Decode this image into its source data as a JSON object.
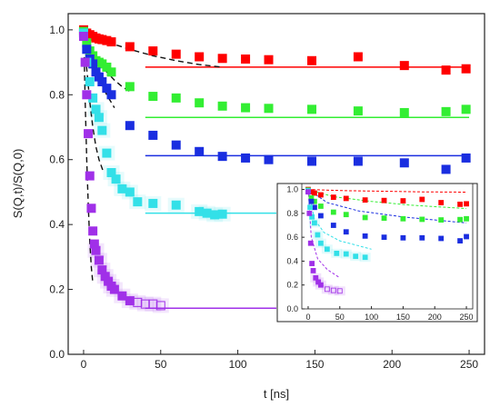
{
  "chart_data": [
    {
      "type": "scatter",
      "title": "",
      "xlabel": "t [ns]",
      "ylabel": "S(Q,t)/S(Q,0)",
      "xlim": [
        -10,
        260
      ],
      "ylim": [
        0,
        1.05
      ],
      "xticks": [
        0,
        50,
        100,
        150,
        200,
        250
      ],
      "yticks": [
        0.0,
        0.2,
        0.4,
        0.6,
        0.8,
        1.0
      ],
      "xtick_labels": [
        "0",
        "50",
        "100",
        "150",
        "200",
        "250"
      ],
      "ytick_labels": [
        "0.0",
        "0.2",
        "0.4",
        "0.6",
        "0.8",
        "1.0"
      ],
      "grid": false,
      "series": [
        {
          "color": "#ff0000",
          "marker": "square-filled",
          "x": [
            0,
            2,
            4,
            6,
            8,
            10,
            12,
            15,
            18,
            30,
            45,
            60,
            75,
            90,
            105,
            120,
            148,
            178,
            208,
            235,
            248
          ],
          "y": [
            1.0,
            0.99,
            0.985,
            0.98,
            0.975,
            0.972,
            0.97,
            0.967,
            0.963,
            0.948,
            0.935,
            0.925,
            0.917,
            0.912,
            0.91,
            0.908,
            0.905,
            0.917,
            0.89,
            0.876,
            0.88
          ],
          "plateau": 0.885,
          "plateau_x": [
            40,
            250
          ],
          "fit_curve_x": [
            0,
            10,
            20,
            30,
            45,
            60,
            75,
            90
          ],
          "fit_curve_y": [
            1.0,
            0.975,
            0.955,
            0.94,
            0.92,
            0.905,
            0.893,
            0.885
          ]
        },
        {
          "color": "#33ee33",
          "marker": "square-filled",
          "x": [
            0,
            2,
            4,
            6,
            8,
            10,
            12,
            15,
            18,
            30,
            45,
            60,
            75,
            90,
            105,
            120,
            148,
            178,
            208,
            235,
            248
          ],
          "y": [
            0.995,
            0.96,
            0.935,
            0.92,
            0.905,
            0.9,
            0.895,
            0.885,
            0.87,
            0.825,
            0.795,
            0.79,
            0.775,
            0.765,
            0.76,
            0.758,
            0.755,
            0.75,
            0.745,
            0.748,
            0.755
          ],
          "plateau": 0.73,
          "plateau_x": [
            40,
            250
          ],
          "fit_curve_x": [
            0,
            5,
            10,
            15,
            20,
            25,
            30
          ],
          "fit_curve_y": [
            1.0,
            0.94,
            0.9,
            0.87,
            0.845,
            0.825,
            0.81
          ]
        },
        {
          "color": "#1a2ee0",
          "marker": "square-filled",
          "x": [
            0,
            2,
            4,
            6,
            8,
            10,
            12,
            15,
            18,
            30,
            45,
            60,
            75,
            90,
            105,
            120,
            148,
            178,
            208,
            235,
            248
          ],
          "y": [
            0.99,
            0.94,
            0.91,
            0.895,
            0.87,
            0.855,
            0.84,
            0.82,
            0.8,
            0.705,
            0.675,
            0.645,
            0.625,
            0.61,
            0.605,
            0.6,
            0.595,
            0.595,
            0.59,
            0.57,
            0.605
          ],
          "plateau": 0.612,
          "plateau_x": [
            40,
            250
          ],
          "fit_curve_x": [
            0,
            5,
            10,
            15,
            20
          ],
          "fit_curve_y": [
            1.0,
            0.91,
            0.85,
            0.8,
            0.76
          ]
        },
        {
          "color": "#33e0e8",
          "marker": "square-filled",
          "x": [
            0,
            2,
            4,
            6,
            8,
            10,
            12,
            15,
            18,
            21,
            25,
            30,
            35,
            45,
            60,
            75,
            80,
            85,
            90
          ],
          "y": [
            0.99,
            0.9,
            0.84,
            0.79,
            0.755,
            0.73,
            0.69,
            0.62,
            0.56,
            0.54,
            0.51,
            0.5,
            0.47,
            0.465,
            0.46,
            0.44,
            0.435,
            0.43,
            0.432
          ],
          "plateau": 0.435,
          "plateau_x": [
            40,
            125
          ],
          "fit_curve_x": [
            0,
            2,
            4,
            6,
            8,
            10,
            13
          ],
          "fit_curve_y": [
            1.0,
            0.88,
            0.78,
            0.7,
            0.64,
            0.6,
            0.56
          ]
        },
        {
          "color": "#a030e8",
          "marker": "square-filled",
          "x": [
            0,
            1,
            2,
            3,
            4,
            5,
            6,
            7,
            8,
            10,
            12,
            14,
            16,
            18,
            20,
            25,
            30,
            35,
            40,
            45,
            50
          ],
          "y": [
            0.98,
            0.9,
            0.8,
            0.68,
            0.55,
            0.45,
            0.38,
            0.34,
            0.32,
            0.29,
            0.26,
            0.24,
            0.225,
            0.21,
            0.2,
            0.18,
            0.165,
            0.16,
            0.155,
            0.155,
            0.15
          ],
          "plateau": 0.142,
          "plateau_x": [
            40,
            125
          ],
          "fit_curve_x": [
            0,
            1,
            2,
            3,
            4,
            5,
            6
          ],
          "fit_curve_y": [
            1.0,
            0.78,
            0.6,
            0.46,
            0.35,
            0.27,
            0.22
          ]
        }
      ]
    },
    {
      "type": "scatter",
      "title": "",
      "xlabel": "",
      "ylabel": "",
      "xlim": [
        -10,
        260
      ],
      "ylim": [
        0,
        1.05
      ],
      "xticks": [
        0,
        50,
        100,
        150,
        200,
        250
      ],
      "yticks": [
        0.0,
        0.2,
        0.4,
        0.6,
        0.8,
        1.0
      ],
      "xtick_labels": [
        "0",
        "50",
        "100",
        "150",
        "200",
        "250"
      ],
      "ytick_labels": [
        "0.0",
        "0.2",
        "0.4",
        "0.6",
        "0.8",
        "1.0"
      ],
      "grid": false,
      "series": [
        {
          "color": "#ff0000",
          "x": [
            0,
            5,
            10,
            20,
            40,
            60,
            90,
            120,
            150,
            180,
            210,
            240,
            250
          ],
          "y": [
            1.0,
            0.98,
            0.97,
            0.955,
            0.935,
            0.925,
            0.912,
            0.908,
            0.905,
            0.917,
            0.89,
            0.876,
            0.88
          ],
          "dashed_x": [
            0,
            60,
            120,
            180,
            250
          ],
          "dashed_y": [
            1.0,
            0.99,
            0.985,
            0.98,
            0.978
          ]
        },
        {
          "color": "#33ee33",
          "x": [
            0,
            5,
            10,
            20,
            40,
            60,
            90,
            120,
            150,
            180,
            210,
            240,
            250
          ],
          "y": [
            0.995,
            0.93,
            0.9,
            0.86,
            0.81,
            0.79,
            0.765,
            0.76,
            0.755,
            0.75,
            0.745,
            0.748,
            0.755
          ],
          "dashed_x": [
            0,
            40,
            100,
            160,
            250
          ],
          "dashed_y": [
            1.0,
            0.94,
            0.9,
            0.87,
            0.84
          ]
        },
        {
          "color": "#1a2ee0",
          "x": [
            0,
            5,
            10,
            20,
            40,
            60,
            90,
            120,
            150,
            180,
            210,
            240,
            250
          ],
          "y": [
            0.99,
            0.9,
            0.85,
            0.78,
            0.7,
            0.645,
            0.61,
            0.6,
            0.595,
            0.595,
            0.59,
            0.57,
            0.605
          ],
          "dashed_x": [
            0,
            30,
            80,
            150,
            250
          ],
          "dashed_y": [
            1.0,
            0.89,
            0.82,
            0.77,
            0.72
          ]
        },
        {
          "color": "#33e0e8",
          "x": [
            0,
            3,
            6,
            10,
            15,
            20,
            30,
            45,
            60,
            75,
            90
          ],
          "y": [
            0.99,
            0.85,
            0.77,
            0.72,
            0.62,
            0.55,
            0.5,
            0.465,
            0.46,
            0.44,
            0.432
          ],
          "dashed_x": [
            0,
            10,
            25,
            50,
            100
          ],
          "dashed_y": [
            1.0,
            0.75,
            0.64,
            0.57,
            0.5
          ]
        },
        {
          "color": "#a030e8",
          "x": [
            0,
            2,
            4,
            6,
            8,
            12,
            16,
            20,
            30,
            40,
            50
          ],
          "y": [
            0.98,
            0.8,
            0.55,
            0.38,
            0.32,
            0.26,
            0.225,
            0.2,
            0.165,
            0.155,
            0.15
          ],
          "dashed_x": [
            0,
            5,
            15,
            30,
            50
          ],
          "dashed_y": [
            1.0,
            0.6,
            0.42,
            0.33,
            0.26
          ]
        }
      ]
    }
  ]
}
